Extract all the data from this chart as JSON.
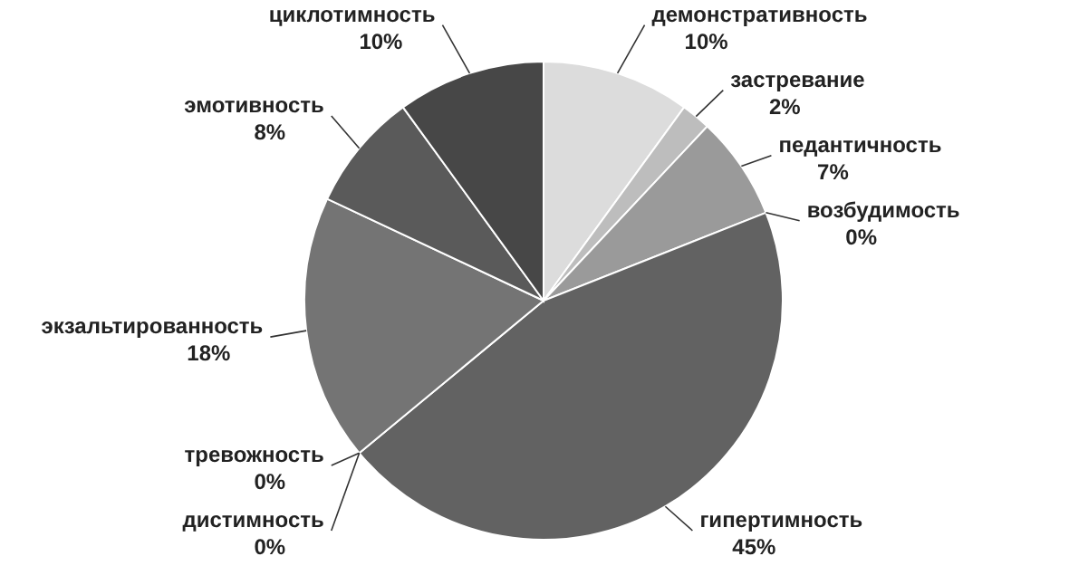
{
  "chart_data": {
    "type": "pie",
    "categories": [
      "демонстративность",
      "застревание",
      "педантичность",
      "возбудимость",
      "гипертимность",
      "тревожность",
      "дистимность",
      "экзальтированность",
      "эмотивность",
      "циклотимность"
    ],
    "values": [
      10,
      2,
      7,
      0,
      45,
      0,
      0,
      18,
      8,
      10
    ],
    "value_labels": [
      "10%",
      "2%",
      "7%",
      "0%",
      "45%",
      "0%",
      "0%",
      "18%",
      "8%",
      "10%"
    ],
    "colors": [
      "#dcdcdc",
      "#bdbdbd",
      "#9a9a9a",
      "#8a8a8a",
      "#626262",
      "#6e6e6e",
      "#7a7a7a",
      "#747474",
      "#5a5a5a",
      "#474747"
    ]
  }
}
